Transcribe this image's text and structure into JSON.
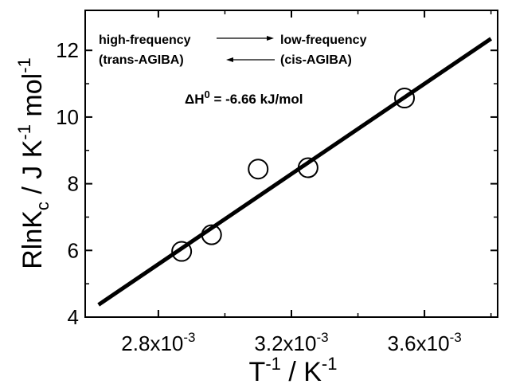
{
  "chart_data": {
    "type": "scatter",
    "xlabel": {
      "base": "T",
      "base_sup": "-1",
      "sep": " / K",
      "unit_sup": "-1"
    },
    "ylabel": {
      "a": "RlnK",
      "a_sub": "c",
      "b": " / J K",
      "b_sup": "-1",
      "c": " mol",
      "c_sup": "-1"
    },
    "xlim": [
      0.00258,
      0.00382
    ],
    "ylim": [
      4,
      13.2
    ],
    "x_ticks": [
      {
        "value": 0.0028,
        "mantissa": "2.8x10",
        "exp": "-3"
      },
      {
        "value": 0.0032,
        "mantissa": "3.2x10",
        "exp": "-3"
      },
      {
        "value": 0.0036,
        "mantissa": "3.6x10",
        "exp": "-3"
      }
    ],
    "x_minor_ticks": [
      0.003,
      0.0034,
      0.0038
    ],
    "y_ticks": [
      {
        "value": 4,
        "label": "4"
      },
      {
        "value": 6,
        "label": "6"
      },
      {
        "value": 8,
        "label": "8"
      },
      {
        "value": 10,
        "label": "10"
      },
      {
        "value": 12,
        "label": "12"
      }
    ],
    "y_minor_ticks": [
      5,
      7,
      9,
      11
    ],
    "points": [
      {
        "x": 0.00287,
        "y": 5.97
      },
      {
        "x": 0.00296,
        "y": 6.47
      },
      {
        "x": 0.0031,
        "y": 8.44
      },
      {
        "x": 0.00325,
        "y": 8.48
      },
      {
        "x": 0.00354,
        "y": 10.57
      }
    ],
    "fit_line": {
      "x": [
        0.00262,
        0.0038
      ],
      "y": [
        4.37,
        12.35
      ]
    },
    "annotations": {
      "high_freq": "high-frequency",
      "trans": "(trans-AGIBA)",
      "low_freq": "low-frequency",
      "cis": "(cis-AGIBA)",
      "dh_symbol": "ΔH",
      "dh_sup": "0",
      "dh_value": " = -6.66 kJ/mol"
    }
  }
}
